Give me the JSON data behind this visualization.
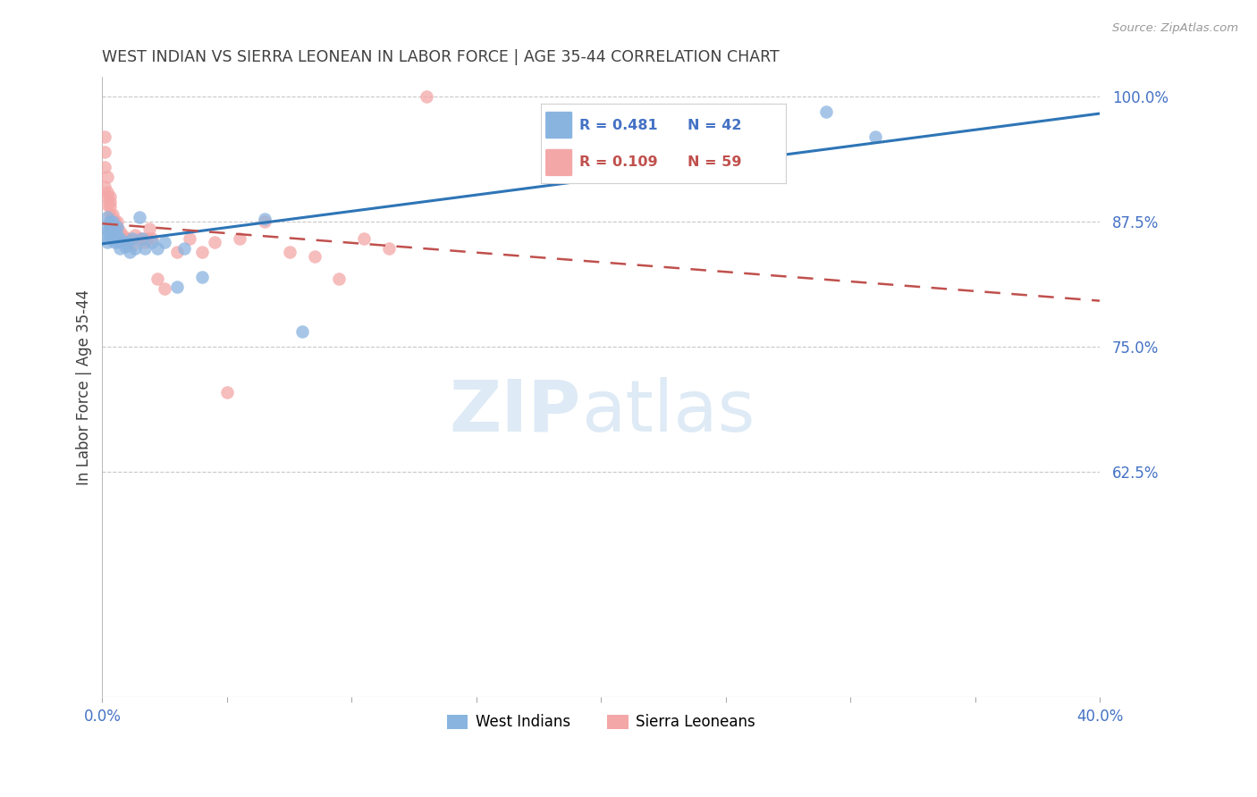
{
  "title": "WEST INDIAN VS SIERRA LEONEAN IN LABOR FORCE | AGE 35-44 CORRELATION CHART",
  "source": "Source: ZipAtlas.com",
  "ylabel": "In Labor Force | Age 35-44",
  "xlim": [
    0.0,
    0.4
  ],
  "ylim": [
    0.4,
    1.02
  ],
  "xticks": [
    0.0,
    0.05,
    0.1,
    0.15,
    0.2,
    0.25,
    0.3,
    0.35,
    0.4
  ],
  "yticks_right": [
    0.625,
    0.75,
    0.875,
    1.0
  ],
  "yticklabels_right": [
    "62.5%",
    "75.0%",
    "87.5%",
    "100.0%"
  ],
  "legend_label_blue": "West Indians",
  "legend_label_pink": "Sierra Leoneans",
  "watermark_zip": "ZIP",
  "watermark_atlas": "atlas",
  "blue_color": "#8ab4e0",
  "pink_color": "#f4a7a7",
  "blue_line_color": "#2e75b6",
  "pink_line_color": "#c0504d",
  "title_color": "#404040",
  "axis_label_color": "#404040",
  "tick_color": "#4472c4",
  "grid_color": "#c8c8c8",
  "west_indian_x": [
    0.001,
    0.001,
    0.002,
    0.002,
    0.002,
    0.003,
    0.003,
    0.003,
    0.003,
    0.004,
    0.004,
    0.004,
    0.004,
    0.004,
    0.005,
    0.005,
    0.005,
    0.005,
    0.006,
    0.006,
    0.006,
    0.007,
    0.007,
    0.008,
    0.009,
    0.01,
    0.011,
    0.012,
    0.013,
    0.015,
    0.016,
    0.017,
    0.02,
    0.022,
    0.025,
    0.03,
    0.033,
    0.04,
    0.065,
    0.08,
    0.29,
    0.31
  ],
  "west_indian_y": [
    0.87,
    0.86,
    0.865,
    0.88,
    0.855,
    0.875,
    0.86,
    0.872,
    0.868,
    0.858,
    0.862,
    0.87,
    0.875,
    0.865,
    0.858,
    0.855,
    0.862,
    0.868,
    0.855,
    0.862,
    0.87,
    0.858,
    0.848,
    0.855,
    0.85,
    0.855,
    0.845,
    0.858,
    0.848,
    0.88,
    0.858,
    0.848,
    0.855,
    0.848,
    0.855,
    0.81,
    0.848,
    0.82,
    0.878,
    0.765,
    0.985,
    0.96
  ],
  "sierra_x": [
    0.001,
    0.001,
    0.001,
    0.001,
    0.002,
    0.002,
    0.002,
    0.002,
    0.003,
    0.003,
    0.003,
    0.003,
    0.003,
    0.004,
    0.004,
    0.004,
    0.004,
    0.005,
    0.005,
    0.005,
    0.005,
    0.005,
    0.005,
    0.006,
    0.006,
    0.006,
    0.006,
    0.007,
    0.007,
    0.008,
    0.008,
    0.009,
    0.009,
    0.01,
    0.01,
    0.011,
    0.012,
    0.013,
    0.015,
    0.016,
    0.017,
    0.018,
    0.019,
    0.02,
    0.022,
    0.025,
    0.03,
    0.035,
    0.04,
    0.045,
    0.05,
    0.055,
    0.065,
    0.075,
    0.085,
    0.095,
    0.105,
    0.115,
    0.13
  ],
  "sierra_y": [
    0.93,
    0.96,
    0.91,
    0.945,
    0.92,
    0.905,
    0.9,
    0.892,
    0.9,
    0.89,
    0.882,
    0.875,
    0.895,
    0.882,
    0.875,
    0.878,
    0.87,
    0.875,
    0.87,
    0.868,
    0.875,
    0.872,
    0.865,
    0.875,
    0.865,
    0.87,
    0.858,
    0.865,
    0.86,
    0.862,
    0.858,
    0.858,
    0.855,
    0.858,
    0.852,
    0.858,
    0.852,
    0.862,
    0.858,
    0.858,
    0.855,
    0.858,
    0.868,
    0.858,
    0.818,
    0.808,
    0.845,
    0.858,
    0.845,
    0.855,
    0.705,
    0.858,
    0.875,
    0.845,
    0.84,
    0.818,
    0.858,
    0.848,
    1.0
  ]
}
